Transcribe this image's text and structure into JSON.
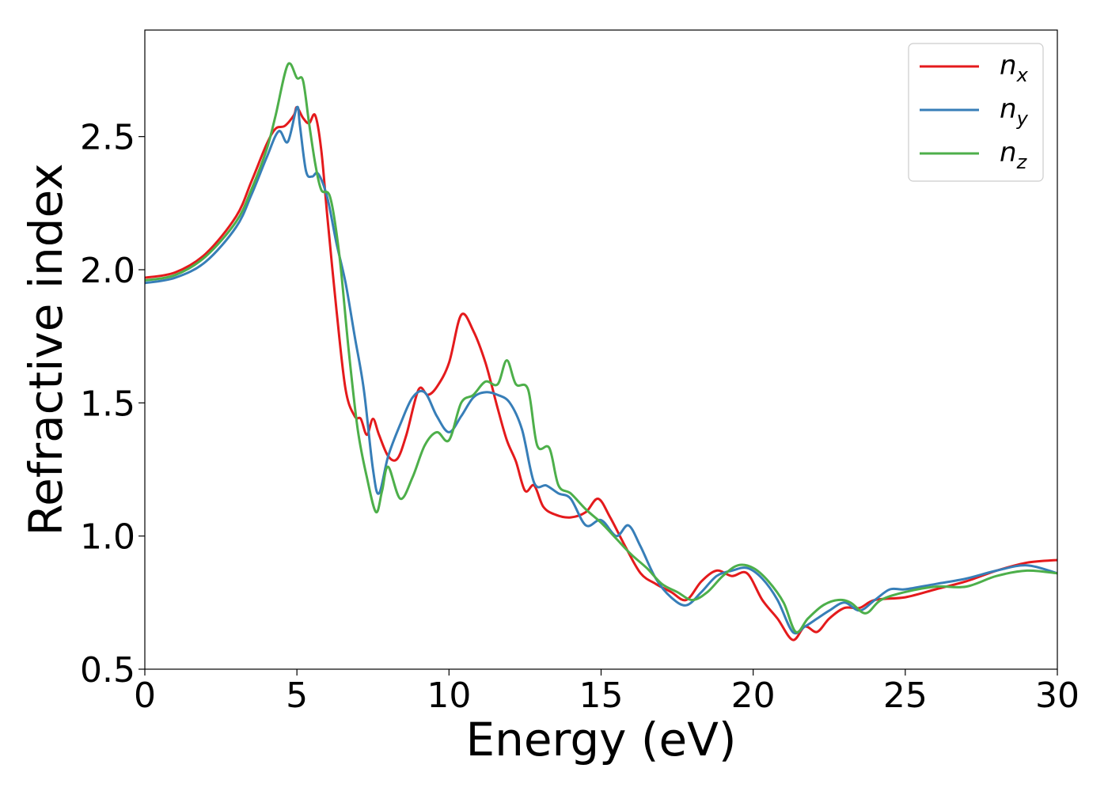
{
  "chart_data": {
    "type": "line",
    "xlabel": "Energy (eV)",
    "ylabel": "Refractive index",
    "xlim": [
      0,
      30
    ],
    "ylim": [
      0.5,
      2.9
    ],
    "xticks": [
      0,
      5,
      10,
      15,
      20,
      25,
      30
    ],
    "xtick_labels": [
      "0",
      "5",
      "10",
      "15",
      "20",
      "25",
      "30"
    ],
    "yticks": [
      0.5,
      1.0,
      1.5,
      2.0,
      2.5
    ],
    "ytick_labels": [
      "0.5",
      "1.0",
      "1.5",
      "2.0",
      "2.5"
    ],
    "grid": false,
    "legend_position": "top-right",
    "series": [
      {
        "name": "n",
        "subscript": "x",
        "color": "#e41a1c",
        "x": [
          0,
          1,
          2,
          3,
          3.5,
          4,
          4.3,
          4.6,
          4.9,
          5.0,
          5.2,
          5.4,
          5.6,
          5.8,
          6.0,
          6.3,
          6.6,
          6.9,
          7.1,
          7.3,
          7.5,
          7.7,
          8.0,
          8.3,
          8.6,
          9.0,
          9.3,
          9.6,
          10.0,
          10.4,
          10.8,
          11.2,
          11.6,
          11.9,
          12.2,
          12.5,
          12.8,
          13.1,
          13.5,
          14.0,
          14.5,
          14.9,
          15.3,
          15.8,
          16.3,
          16.8,
          17.3,
          17.8,
          18.3,
          18.8,
          19.3,
          19.8,
          20.3,
          20.8,
          21.3,
          21.7,
          22.1,
          22.5,
          23.0,
          23.5,
          24.0,
          25.0,
          26.0,
          27.0,
          28.0,
          29.0,
          30.0
        ],
        "y": [
          1.97,
          1.99,
          2.06,
          2.2,
          2.33,
          2.47,
          2.53,
          2.54,
          2.58,
          2.61,
          2.57,
          2.55,
          2.58,
          2.45,
          2.2,
          1.85,
          1.55,
          1.45,
          1.44,
          1.38,
          1.44,
          1.38,
          1.3,
          1.29,
          1.38,
          1.55,
          1.53,
          1.56,
          1.65,
          1.83,
          1.77,
          1.65,
          1.48,
          1.36,
          1.28,
          1.17,
          1.19,
          1.11,
          1.08,
          1.07,
          1.09,
          1.14,
          1.07,
          0.96,
          0.86,
          0.82,
          0.79,
          0.76,
          0.83,
          0.87,
          0.85,
          0.86,
          0.76,
          0.69,
          0.61,
          0.66,
          0.64,
          0.69,
          0.73,
          0.73,
          0.76,
          0.77,
          0.8,
          0.83,
          0.87,
          0.9,
          0.91
        ]
      },
      {
        "name": "n",
        "subscript": "y",
        "color": "#377eb8",
        "x": [
          0,
          1,
          2,
          3,
          3.5,
          4,
          4.4,
          4.7,
          5.0,
          5.1,
          5.3,
          5.5,
          5.7,
          6.0,
          6.3,
          6.6,
          6.9,
          7.2,
          7.5,
          7.7,
          8.0,
          8.4,
          8.8,
          9.2,
          9.6,
          10.0,
          10.4,
          10.8,
          11.2,
          11.6,
          12.0,
          12.4,
          12.8,
          13.2,
          13.6,
          14.0,
          14.5,
          15.0,
          15.5,
          15.9,
          16.3,
          16.8,
          17.3,
          17.8,
          18.3,
          18.8,
          19.3,
          19.8,
          20.3,
          20.8,
          21.3,
          21.7,
          22.1,
          22.5,
          23.0,
          23.5,
          24.0,
          24.5,
          25.0,
          26.0,
          27.0,
          28.0,
          29.0,
          30.0
        ],
        "y": [
          1.95,
          1.97,
          2.03,
          2.16,
          2.28,
          2.42,
          2.52,
          2.48,
          2.61,
          2.54,
          2.37,
          2.35,
          2.36,
          2.27,
          2.1,
          1.95,
          1.75,
          1.55,
          1.25,
          1.16,
          1.3,
          1.42,
          1.52,
          1.54,
          1.45,
          1.39,
          1.45,
          1.52,
          1.54,
          1.53,
          1.5,
          1.4,
          1.2,
          1.19,
          1.16,
          1.14,
          1.04,
          1.06,
          1.0,
          1.04,
          0.96,
          0.84,
          0.77,
          0.74,
          0.79,
          0.85,
          0.87,
          0.88,
          0.84,
          0.76,
          0.64,
          0.66,
          0.69,
          0.72,
          0.75,
          0.72,
          0.76,
          0.8,
          0.8,
          0.82,
          0.84,
          0.87,
          0.89,
          0.86
        ]
      },
      {
        "name": "n",
        "subscript": "z",
        "color": "#4daf4a",
        "x": [
          0,
          1,
          2,
          3,
          3.5,
          4,
          4.3,
          4.7,
          5.0,
          5.2,
          5.4,
          5.6,
          5.8,
          6.1,
          6.4,
          6.7,
          7.0,
          7.3,
          7.6,
          7.8,
          8.0,
          8.4,
          8.8,
          9.2,
          9.6,
          10.0,
          10.4,
          10.8,
          11.2,
          11.6,
          11.9,
          12.2,
          12.6,
          12.9,
          13.3,
          13.6,
          14.0,
          14.5,
          15.0,
          15.5,
          16.0,
          16.5,
          17.0,
          17.5,
          18.0,
          18.5,
          19.0,
          19.5,
          20.0,
          20.5,
          21.0,
          21.4,
          21.8,
          22.3,
          22.8,
          23.2,
          23.7,
          24.2,
          25.0,
          26.0,
          27.0,
          28.0,
          29.0,
          30.0
        ],
        "y": [
          1.96,
          1.98,
          2.05,
          2.18,
          2.3,
          2.45,
          2.58,
          2.77,
          2.72,
          2.71,
          2.55,
          2.4,
          2.3,
          2.27,
          2.05,
          1.7,
          1.4,
          1.22,
          1.09,
          1.17,
          1.26,
          1.14,
          1.22,
          1.34,
          1.39,
          1.36,
          1.5,
          1.53,
          1.58,
          1.57,
          1.66,
          1.57,
          1.55,
          1.34,
          1.33,
          1.19,
          1.16,
          1.1,
          1.05,
          0.99,
          0.93,
          0.88,
          0.82,
          0.79,
          0.76,
          0.79,
          0.85,
          0.89,
          0.88,
          0.83,
          0.75,
          0.64,
          0.69,
          0.74,
          0.76,
          0.75,
          0.71,
          0.76,
          0.79,
          0.81,
          0.81,
          0.85,
          0.87,
          0.86
        ]
      }
    ]
  }
}
